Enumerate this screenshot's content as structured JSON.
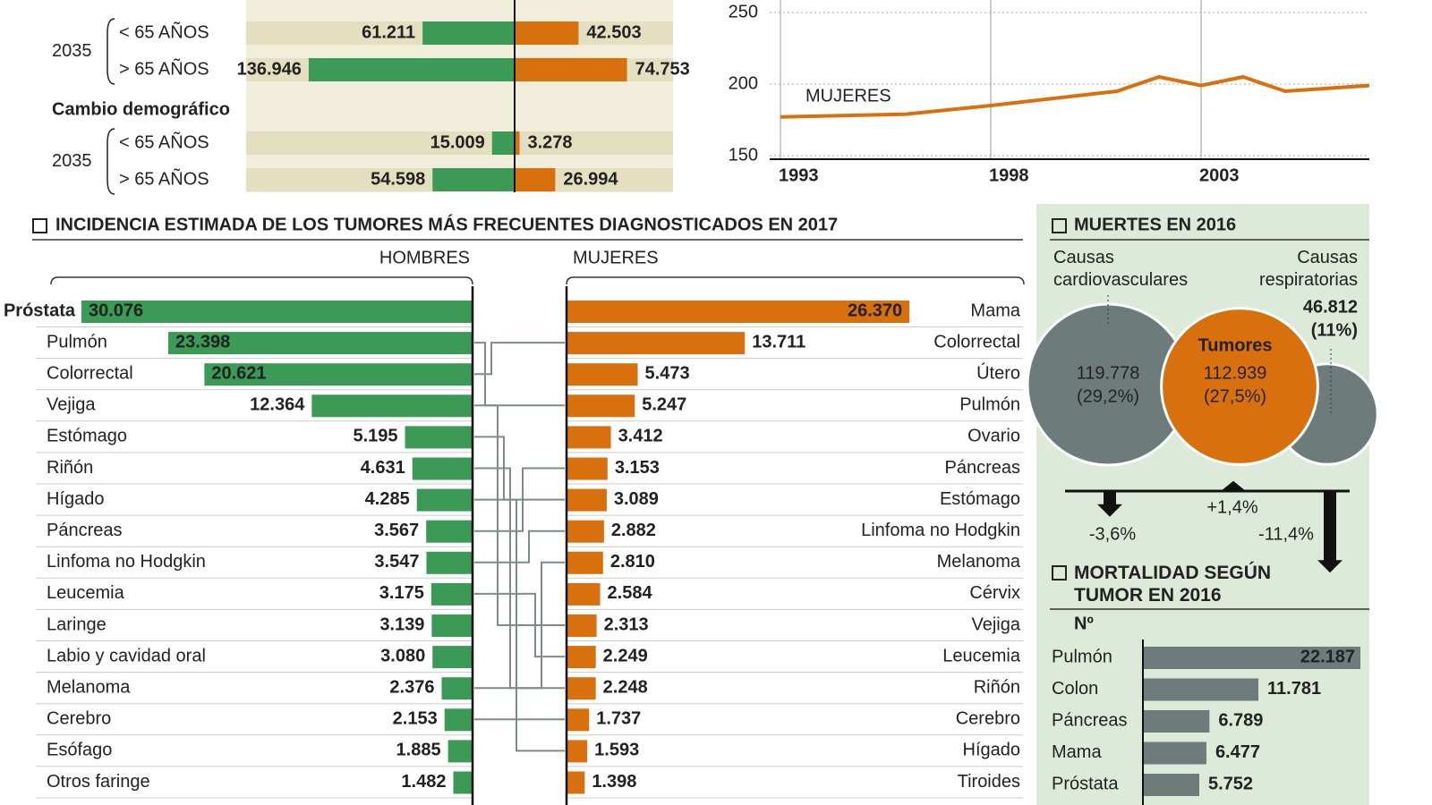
{
  "chart_data": [
    {
      "type": "diverging_bar",
      "groups": [
        {
          "label": "2035",
          "categories": [
            "< 65 AÑOS",
            "> 65 AÑOS"
          ],
          "series": [
            {
              "color": "#3a9a56",
              "values": [
                61211,
                136946
              ],
              "value_labels": [
                "61.211",
                "136.946"
              ]
            },
            {
              "color": "#d8700e",
              "values": [
                42503,
                74753
              ],
              "value_labels": [
                "42.503",
                "74.753"
              ]
            }
          ]
        },
        {
          "heading": "Cambio demográfico",
          "label": "2035",
          "categories": [
            "< 65 AÑOS",
            "> 65 AÑOS"
          ],
          "series": [
            {
              "color": "#3a9a56",
              "values": [
                15009,
                54598
              ],
              "value_labels": [
                "15.009",
                "54.598"
              ]
            },
            {
              "color": "#d8700e",
              "values": [
                3278,
                26994
              ],
              "value_labels": [
                "3.278",
                "26.994"
              ]
            }
          ]
        }
      ]
    },
    {
      "type": "line",
      "x": [
        1993,
        1996,
        1998,
        2001,
        2002,
        2003,
        2004,
        2005,
        2007
      ],
      "series": [
        {
          "name": "MUJERES",
          "color": "#d8700e",
          "values": [
            177,
            179,
            185,
            195,
            205,
            199,
            205,
            195,
            199
          ]
        }
      ],
      "xlim": [
        1993,
        2007
      ],
      "ylim": [
        150,
        250
      ],
      "xticks": [
        1993,
        1998,
        2003
      ],
      "yticks": [
        150,
        200,
        250
      ],
      "grid": true
    },
    {
      "type": "butterfly_bar",
      "title": "INCIDENCIA ESTIMADA DE LOS TUMORES MÁS FRECUENTES DIAGNOSTICADOS EN 2017",
      "series": [
        {
          "name": "HOMBRES",
          "color": "#3a9a56",
          "categories": [
            "Próstata",
            "Pulmón",
            "Colorrectal",
            "Vejiga",
            "Estómago",
            "Riñón",
            "Hígado",
            "Páncreas",
            "Linfoma no Hodgkin",
            "Leucemia",
            "Laringe",
            "Labio y cavidad oral",
            "Melanoma",
            "Cerebro",
            "Esófago",
            "Otros faringe"
          ],
          "values": [
            30076,
            23398,
            20621,
            12364,
            5195,
            4631,
            4285,
            3567,
            3547,
            3175,
            3139,
            3080,
            2376,
            2153,
            1885,
            1482
          ],
          "value_labels": [
            "30.076",
            "23.398",
            "20.621",
            "12.364",
            "5.195",
            "4.631",
            "4.285",
            "3.567",
            "3.547",
            "3.175",
            "3.139",
            "3.080",
            "2.376",
            "2.153",
            "1.885",
            "1.482"
          ]
        },
        {
          "name": "MUJERES",
          "color": "#d8700e",
          "categories": [
            "Mama",
            "Colorrectal",
            "Útero",
            "Pulmón",
            "Ovario",
            "Páncreas",
            "Estómago",
            "Linfoma no Hodgkin",
            "Melanoma",
            "Cérvix",
            "Vejiga",
            "Leucemia",
            "Riñón",
            "Cerebro",
            "Hígado",
            "Tiroides"
          ],
          "values": [
            26370,
            13711,
            5473,
            5247,
            3412,
            3153,
            3089,
            2882,
            2810,
            2584,
            2313,
            2249,
            2248,
            1737,
            1593,
            1398
          ],
          "value_labels": [
            "26.370",
            "13.711",
            "5.473",
            "5.247",
            "3.412",
            "3.153",
            "3.089",
            "2.882",
            "2.810",
            "2.584",
            "2.313",
            "2.249",
            "2.248",
            "1.737",
            "1.593",
            "1.398"
          ]
        }
      ]
    },
    {
      "type": "bubble",
      "title": "MUERTES EN 2016",
      "categories": [
        "Causas cardiovasculares",
        "Tumores",
        "Causas respiratorias"
      ],
      "color": [
        "#6e7b7b",
        "#d8700e",
        "#6e7b7b"
      ],
      "values": [
        119778,
        112939,
        46812
      ],
      "value_labels": [
        "119.778",
        "112.939",
        "46.812"
      ],
      "percent": [
        29.2,
        27.5,
        11
      ],
      "percent_labels": [
        "(29,2%)",
        "(27,5%)",
        "(11%)"
      ],
      "change": [
        -3.6,
        1.4,
        -11.4
      ],
      "change_labels": [
        "-3,6%",
        "+1,4%",
        "-11,4%"
      ]
    },
    {
      "type": "bar",
      "title": "MORTALIDAD SEGÚN TUMOR EN 2016",
      "value_header": "Nº",
      "color": "#6e7b7b",
      "categories": [
        "Pulmón",
        "Colon",
        "Páncreas",
        "Mama",
        "Próstata"
      ],
      "values": [
        22187,
        11781,
        6789,
        6477,
        5752
      ],
      "value_labels": [
        "22.187",
        "11.781",
        "6.789",
        "6.477",
        "5.752"
      ]
    }
  ]
}
